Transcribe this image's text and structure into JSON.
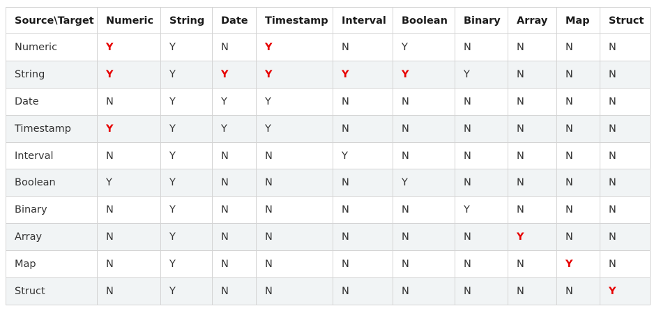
{
  "table": {
    "headers": [
      "Source\\Target",
      "Numeric",
      "String",
      "Date",
      "Timestamp",
      "Interval",
      "Boolean",
      "Binary",
      "Array",
      "Map",
      "Struct"
    ],
    "rows": [
      {
        "source": "Numeric",
        "cells": [
          {
            "v": "Y",
            "hl": true
          },
          {
            "v": "Y"
          },
          {
            "v": "N"
          },
          {
            "v": "Y",
            "hl": true
          },
          {
            "v": "N"
          },
          {
            "v": "Y"
          },
          {
            "v": "N"
          },
          {
            "v": "N"
          },
          {
            "v": "N"
          },
          {
            "v": "N"
          }
        ]
      },
      {
        "source": "String",
        "cells": [
          {
            "v": "Y",
            "hl": true
          },
          {
            "v": "Y"
          },
          {
            "v": "Y",
            "hl": true
          },
          {
            "v": "Y",
            "hl": true
          },
          {
            "v": "Y",
            "hl": true
          },
          {
            "v": "Y",
            "hl": true
          },
          {
            "v": "Y"
          },
          {
            "v": "N"
          },
          {
            "v": "N"
          },
          {
            "v": "N"
          }
        ]
      },
      {
        "source": "Date",
        "cells": [
          {
            "v": "N"
          },
          {
            "v": "Y"
          },
          {
            "v": "Y"
          },
          {
            "v": "Y"
          },
          {
            "v": "N"
          },
          {
            "v": "N"
          },
          {
            "v": "N"
          },
          {
            "v": "N"
          },
          {
            "v": "N"
          },
          {
            "v": "N"
          }
        ]
      },
      {
        "source": "Timestamp",
        "cells": [
          {
            "v": "Y",
            "hl": true
          },
          {
            "v": "Y"
          },
          {
            "v": "Y"
          },
          {
            "v": "Y"
          },
          {
            "v": "N"
          },
          {
            "v": "N"
          },
          {
            "v": "N"
          },
          {
            "v": "N"
          },
          {
            "v": "N"
          },
          {
            "v": "N"
          }
        ]
      },
      {
        "source": "Interval",
        "cells": [
          {
            "v": "N"
          },
          {
            "v": "Y"
          },
          {
            "v": "N"
          },
          {
            "v": "N"
          },
          {
            "v": "Y"
          },
          {
            "v": "N"
          },
          {
            "v": "N"
          },
          {
            "v": "N"
          },
          {
            "v": "N"
          },
          {
            "v": "N"
          }
        ]
      },
      {
        "source": "Boolean",
        "cells": [
          {
            "v": "Y"
          },
          {
            "v": "Y"
          },
          {
            "v": "N"
          },
          {
            "v": "N"
          },
          {
            "v": "N"
          },
          {
            "v": "Y"
          },
          {
            "v": "N"
          },
          {
            "v": "N"
          },
          {
            "v": "N"
          },
          {
            "v": "N"
          }
        ]
      },
      {
        "source": "Binary",
        "cells": [
          {
            "v": "N"
          },
          {
            "v": "Y"
          },
          {
            "v": "N"
          },
          {
            "v": "N"
          },
          {
            "v": "N"
          },
          {
            "v": "N"
          },
          {
            "v": "Y"
          },
          {
            "v": "N"
          },
          {
            "v": "N"
          },
          {
            "v": "N"
          }
        ]
      },
      {
        "source": "Array",
        "cells": [
          {
            "v": "N"
          },
          {
            "v": "Y"
          },
          {
            "v": "N"
          },
          {
            "v": "N"
          },
          {
            "v": "N"
          },
          {
            "v": "N"
          },
          {
            "v": "N"
          },
          {
            "v": "Y",
            "hl": true
          },
          {
            "v": "N"
          },
          {
            "v": "N"
          }
        ]
      },
      {
        "source": "Map",
        "cells": [
          {
            "v": "N"
          },
          {
            "v": "Y"
          },
          {
            "v": "N"
          },
          {
            "v": "N"
          },
          {
            "v": "N"
          },
          {
            "v": "N"
          },
          {
            "v": "N"
          },
          {
            "v": "N"
          },
          {
            "v": "Y",
            "hl": true
          },
          {
            "v": "N"
          }
        ]
      },
      {
        "source": "Struct",
        "cells": [
          {
            "v": "N"
          },
          {
            "v": "Y"
          },
          {
            "v": "N"
          },
          {
            "v": "N"
          },
          {
            "v": "N"
          },
          {
            "v": "N"
          },
          {
            "v": "N"
          },
          {
            "v": "N"
          },
          {
            "v": "N"
          },
          {
            "v": "Y",
            "hl": true
          }
        ]
      }
    ]
  },
  "colors": {
    "highlight": "#e60000",
    "text": "#333333",
    "header_text": "#1a1a1a",
    "stripe": "#f1f4f5",
    "border": "#d4d4d4"
  }
}
